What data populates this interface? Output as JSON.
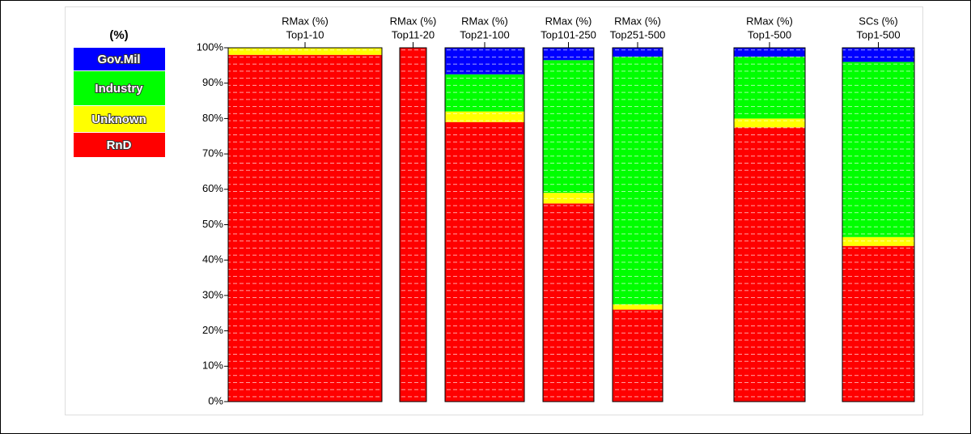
{
  "chart_data": {
    "type": "stacked_bar",
    "legend_title": "(%)",
    "categories": [
      [
        "RMax (%)",
        "Top1-10"
      ],
      [
        "RMax (%)",
        "Top11-20"
      ],
      [
        "RMax (%)",
        "Top21-100"
      ],
      [
        "RMax (%)",
        "Top101-250"
      ],
      [
        "RMax (%)",
        "Top251-500"
      ],
      [
        "RMax (%)",
        "Top1-500"
      ],
      [
        "SCs (%)",
        "Top1-500"
      ]
    ],
    "series": [
      {
        "name": "RnD",
        "color": "#ff0000",
        "values": [
          98,
          100,
          79,
          56,
          26,
          77.5,
          44
        ]
      },
      {
        "name": "Unknown",
        "color": "#ffff00",
        "values": [
          2,
          0,
          3,
          3,
          1.5,
          2.5,
          2.5
        ]
      },
      {
        "name": "Industry",
        "color": "#00ff00",
        "values": [
          0,
          0,
          10.5,
          37.5,
          70,
          17.5,
          49.5
        ]
      },
      {
        "name": "Gov.Mil",
        "color": "#0000ff",
        "values": [
          0,
          0,
          7.5,
          3.5,
          2.5,
          2.5,
          4
        ]
      }
    ],
    "ylim": [
      0,
      100
    ],
    "yticks": [
      {
        "value": 0,
        "label": "0%"
      },
      {
        "value": 10,
        "label": "10%"
      },
      {
        "value": 20,
        "label": "20%"
      },
      {
        "value": 30,
        "label": "30%"
      },
      {
        "value": 40,
        "label": "40%"
      },
      {
        "value": 50,
        "label": "50%"
      },
      {
        "value": 60,
        "label": "60%"
      },
      {
        "value": 70,
        "label": "70%"
      },
      {
        "value": 80,
        "label": "80%"
      },
      {
        "value": 90,
        "label": "90%"
      },
      {
        "value": 100,
        "label": "100%"
      }
    ],
    "legend": "top-left"
  }
}
